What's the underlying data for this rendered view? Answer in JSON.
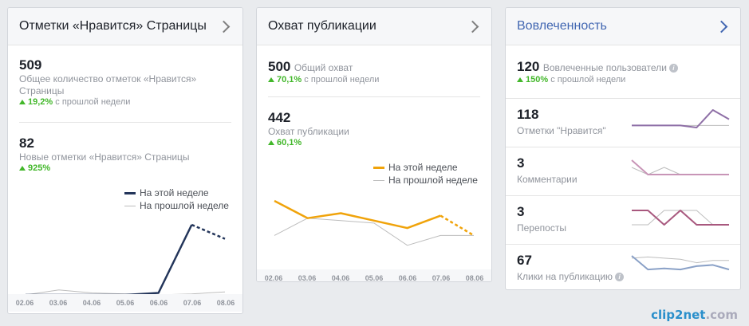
{
  "likes_card": {
    "title": "Отметки «Нравится» Страницы",
    "total_value": "509",
    "total_label": "Общее количество отметок «Нравится» Страницы",
    "total_change": "19,2%",
    "total_change_suffix": "с прошлой недели",
    "new_value": "82",
    "new_label": "Новые отметки «Нравится» Страницы",
    "new_change": "925%",
    "legend_this": "На этой неделе",
    "legend_last": "На прошлой неделе"
  },
  "reach_card": {
    "title": "Охват публикации",
    "total_value": "500",
    "total_label": "Общий охват",
    "total_change": "70,1%",
    "total_change_suffix": "с прошлой недели",
    "post_value": "442",
    "post_label": "Охват публикации",
    "post_change": "60,1%",
    "legend_this": "На этой неделе",
    "legend_last": "На прошлой неделе"
  },
  "engagement_card": {
    "title": "Вовлеченность",
    "total_value": "120",
    "total_label": "Вовлеченные пользователи",
    "total_change": "150%",
    "total_change_suffix": "с прошлой недели",
    "rows": [
      {
        "value": "118",
        "label": "Отметки \"Нравится\""
      },
      {
        "value": "3",
        "label": "Комментарии"
      },
      {
        "value": "3",
        "label": "Перепосты"
      },
      {
        "value": "67",
        "label": "Клики на публикацию"
      }
    ]
  },
  "watermark": {
    "brand": "clip2net",
    "suffix": ".com"
  },
  "colors": {
    "likes_this": "#23355a",
    "reach_this": "#f0a30a",
    "last_week": "#bdbdbd",
    "eng_likes": "#8e6fa6",
    "eng_comments": "#c895b7",
    "eng_shares": "#a8587e",
    "eng_clicks": "#8aa1c7",
    "up": "#42b72a"
  },
  "chart_data": [
    {
      "type": "line",
      "categories": [
        "02.06",
        "03.06",
        "04.06",
        "05.06",
        "06.06",
        "07.06",
        "08.06"
      ],
      "series": [
        {
          "name": "На этой неделе",
          "values": [
            0,
            0,
            0,
            0,
            2,
            70,
            56
          ]
        },
        {
          "name": "На прошлой неделе",
          "values": [
            0,
            5,
            2,
            1,
            0,
            1,
            3
          ]
        }
      ]
    },
    {
      "type": "line",
      "categories": [
        "02.06",
        "03.06",
        "04.06",
        "05.06",
        "06.06",
        "07.06",
        "08.06"
      ],
      "series": [
        {
          "name": "На этой неделе",
          "values": [
            200,
            130,
            150,
            120,
            90,
            140,
            60
          ]
        },
        {
          "name": "На прошлой неделе",
          "values": [
            60,
            130,
            120,
            110,
            20,
            60,
            60
          ]
        }
      ]
    },
    {
      "type": "line",
      "categories": [
        "02.06",
        "03.06",
        "04.06",
        "05.06",
        "06.06",
        "07.06",
        "08.06"
      ],
      "series": [
        {
          "values": [
            3,
            3,
            3,
            3,
            1,
            18,
            9
          ]
        },
        {
          "values": [
            3,
            3,
            3,
            3,
            3,
            3,
            3
          ]
        }
      ]
    },
    {
      "type": "line",
      "categories": [
        "02.06",
        "03.06",
        "04.06",
        "05.06",
        "06.06",
        "07.06",
        "08.06"
      ],
      "series": [
        {
          "values": [
            2,
            0,
            0,
            0,
            0,
            0,
            0
          ]
        },
        {
          "values": [
            1,
            0,
            1,
            0,
            0,
            0,
            0
          ]
        }
      ]
    },
    {
      "type": "line",
      "categories": [
        "02.06",
        "03.06",
        "04.06",
        "05.06",
        "06.06",
        "07.06",
        "08.06"
      ],
      "series": [
        {
          "values": [
            1,
            1,
            0,
            1,
            0,
            0,
            0
          ]
        },
        {
          "values": [
            0,
            0,
            1,
            1,
            1,
            0,
            0
          ]
        }
      ]
    },
    {
      "type": "line",
      "categories": [
        "02.06",
        "03.06",
        "04.06",
        "05.06",
        "06.06",
        "07.06",
        "08.06"
      ],
      "series": [
        {
          "values": [
            14,
            2,
            3,
            2,
            5,
            6,
            2
          ]
        },
        {
          "values": [
            12,
            13,
            12,
            11,
            8,
            10,
            10
          ]
        }
      ]
    }
  ]
}
